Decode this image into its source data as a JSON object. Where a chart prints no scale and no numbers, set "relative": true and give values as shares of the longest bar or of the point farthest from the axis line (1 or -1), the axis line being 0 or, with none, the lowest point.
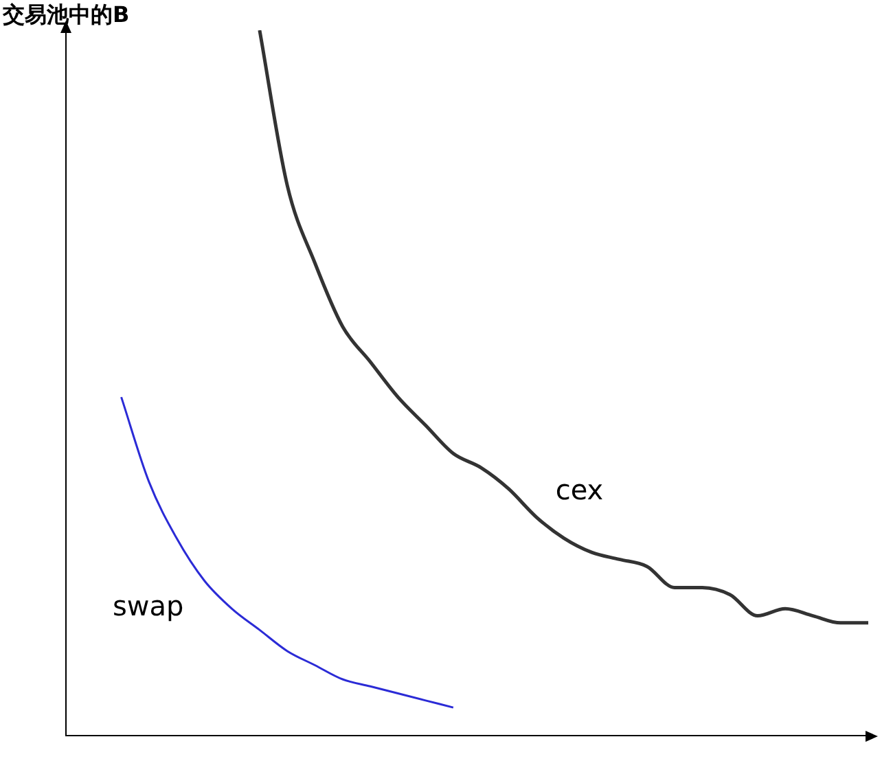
{
  "chart_data": {
    "type": "line",
    "ylabel": "交易池中的B",
    "relative": true,
    "grid": false,
    "legend": false,
    "marker": "none",
    "line_style": "solid",
    "categories": [
      null,
      null,
      null,
      null,
      null,
      null,
      null,
      null,
      null,
      null,
      null,
      null,
      null,
      null,
      null,
      null,
      null,
      null,
      null,
      null,
      null,
      null,
      null,
      null,
      null,
      null,
      null,
      null,
      null,
      null
    ],
    "series": [
      {
        "name": "cex",
        "color": "#333333",
        "values": [
          null,
          null,
          null,
          null,
          null,
          null,
          null,
          1.0,
          0.78,
          0.67,
          0.58,
          0.53,
          0.48,
          0.44,
          0.4,
          0.38,
          0.35,
          0.31,
          0.28,
          0.26,
          0.25,
          0.24,
          0.21,
          0.21,
          0.2,
          0.17,
          0.18,
          0.17,
          0.16,
          0.16
        ]
      },
      {
        "name": "swap",
        "color": "#2b2bd6",
        "values": [
          null,
          null,
          0.48,
          0.36,
          0.28,
          0.22,
          0.18,
          0.15,
          0.12,
          0.1,
          0.08,
          0.07,
          0.06,
          0.05,
          0.04,
          null,
          null,
          null,
          null,
          null,
          null,
          null,
          null,
          null,
          null,
          null,
          null,
          null,
          null,
          null
        ]
      }
    ]
  }
}
